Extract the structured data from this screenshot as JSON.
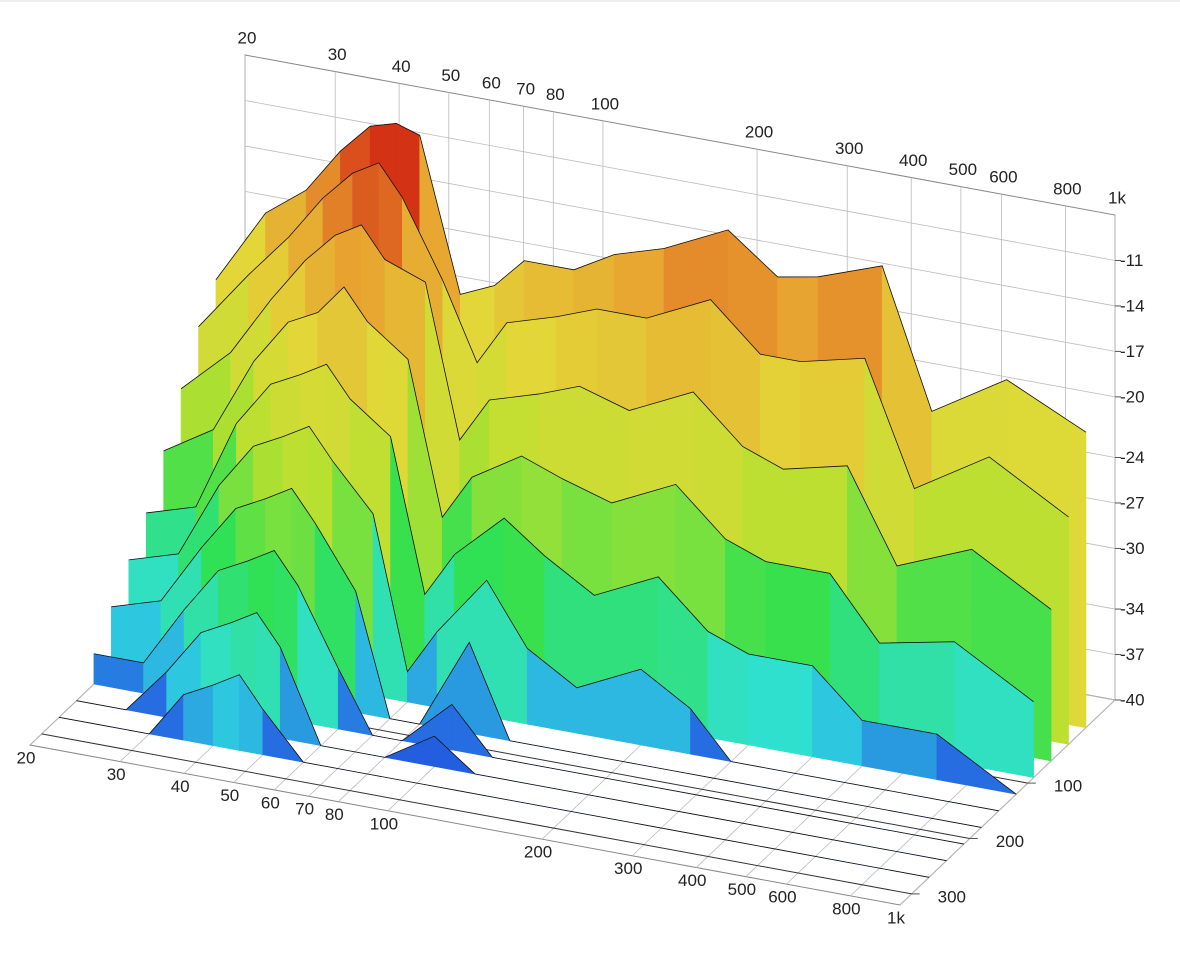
{
  "chart_data": {
    "type": "waterfall",
    "x": [
      20,
      25,
      30,
      35,
      40,
      45,
      50,
      60,
      70,
      80,
      100,
      120,
      150,
      200,
      250,
      300,
      400,
      500,
      700,
      1000
    ],
    "xlim": [
      20,
      1000
    ],
    "xscale": "log",
    "xticks": [
      20,
      30,
      40,
      50,
      60,
      70,
      80,
      100,
      200,
      300,
      400,
      500,
      600,
      800,
      {
        "value": 1000,
        "label": "1k"
      }
    ],
    "zlim": [
      -40,
      -8
    ],
    "zticks": [
      -11,
      -14,
      -17,
      -20,
      -24,
      -27,
      -30,
      -34,
      -37,
      -40
    ],
    "ylim": [
      -50,
      320
    ],
    "yticks": [
      100,
      200,
      300
    ],
    "grid": true,
    "slices": [
      {
        "time": 0,
        "values": [
          -21,
          -16,
          -14,
          -11,
          -9,
          -8.5,
          -9,
          -19,
          -18,
          -16,
          -16,
          -14.5,
          -13.5,
          -11.5,
          -14,
          -13.5,
          -12,
          -21,
          -18,
          -20.5
        ]
      },
      {
        "time": 30,
        "values": [
          -23,
          -19,
          -16,
          -13,
          -11,
          -10,
          -12,
          -17,
          -22,
          -19,
          -18,
          -17,
          -17,
          -15,
          -18,
          -18,
          -17,
          -25,
          -22,
          -25
        ]
      },
      {
        "time": 60,
        "values": [
          -26,
          -23,
          -19,
          -16,
          -14,
          -13,
          -15,
          -16,
          -26,
          -23,
          -22,
          -21,
          -22,
          -20,
          -23,
          -24,
          -23,
          -29,
          -27,
          -30
        ]
      },
      {
        "time": 90,
        "values": [
          -29,
          -27,
          -22,
          -19,
          -18,
          -16,
          -18,
          -20,
          -30,
          -27,
          -25,
          -26,
          -27,
          -25,
          -28,
          -29,
          -29,
          -33,
          -32,
          -35
        ]
      },
      {
        "time": 120,
        "values": [
          -32,
          -31,
          -25,
          -22,
          -21,
          -20,
          -22,
          -24,
          -34,
          -31,
          -28,
          -30,
          -32,
          -30,
          -33,
          -34,
          -34,
          -37,
          -37,
          -40
        ]
      },
      {
        "time": 150,
        "values": [
          -34,
          -33,
          -28,
          -25,
          -24,
          -23,
          -25,
          -28,
          -38,
          -35,
          -31,
          -35,
          -37,
          -35,
          -37,
          -40,
          -40,
          -40,
          -40,
          -40
        ]
      },
      {
        "time": 180,
        "values": [
          -36,
          -35,
          -31,
          -28,
          -27,
          -26,
          -28,
          -32,
          -40,
          -40,
          -34,
          -40,
          -40,
          -40,
          -40,
          -40,
          -40,
          -40,
          -40,
          -40
        ]
      },
      {
        "time": 210,
        "values": [
          -38,
          -38,
          -34,
          -31,
          -30,
          -29,
          -31,
          -36,
          -40,
          -40,
          -37,
          -40,
          -40,
          -40,
          -40,
          -40,
          -40,
          -40,
          -40,
          -40
        ]
      },
      {
        "time": 240,
        "values": [
          -40,
          -40,
          -37,
          -34,
          -33,
          -32,
          -34,
          -40,
          -40,
          -40,
          -38,
          -40,
          -40,
          -40,
          -40,
          -40,
          -40,
          -40,
          -40,
          -40
        ]
      },
      {
        "time": 270,
        "values": [
          -40,
          -40,
          -40,
          -37,
          -36,
          -35,
          -37,
          -40,
          -40,
          -40,
          -40,
          -40,
          -40,
          -40,
          -40,
          -40,
          -40,
          -40,
          -40,
          -40
        ]
      }
    ],
    "colormap": [
      "#2040e0",
      "#30e0e0",
      "#30e050",
      "#b8e030",
      "#e2d838",
      "#e8a030",
      "#d02010"
    ]
  }
}
